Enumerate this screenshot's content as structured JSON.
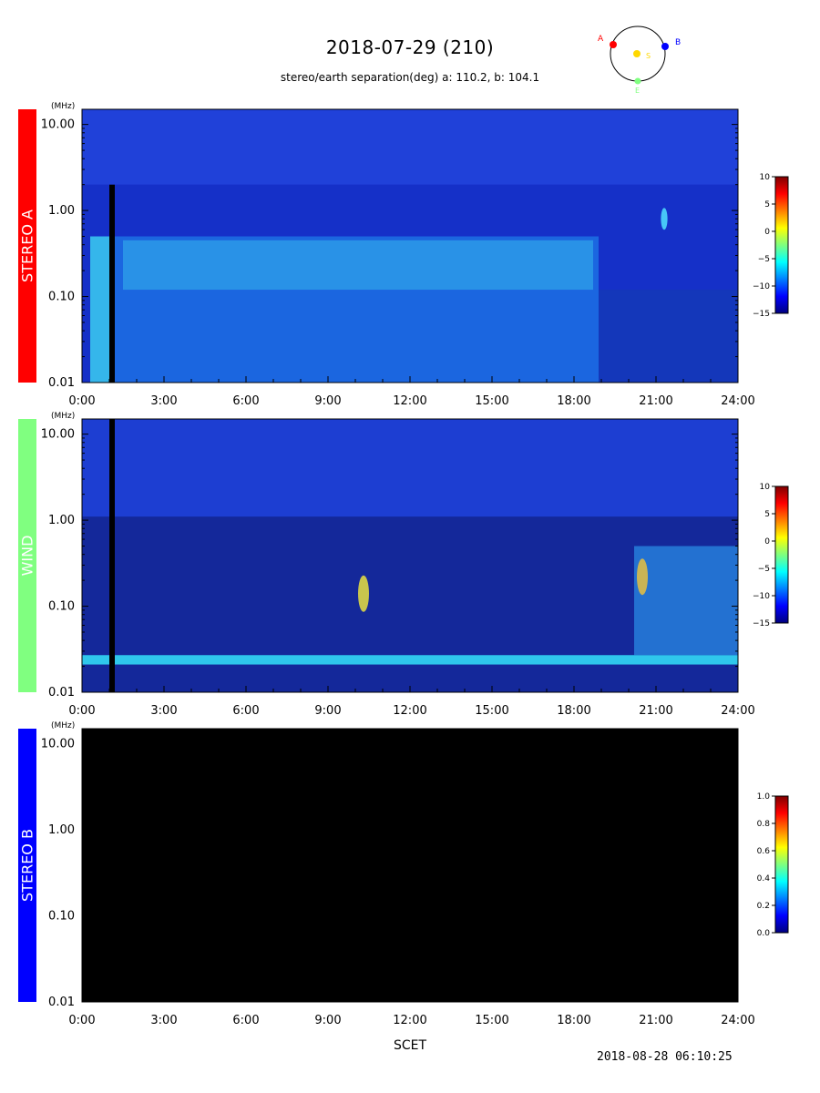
{
  "title": "2018-07-29 (210)",
  "subtitle": "stereo/earth separation(deg) a: 110.2, b: 104.1",
  "orbit": {
    "label_a": "A",
    "label_b": "B",
    "label_s": "S",
    "label_e": "E"
  },
  "xlabel": "SCET",
  "timestamp": "2018-08-28 06:10:25",
  "chart_data": [
    {
      "type": "heatmap",
      "panel": "STEREO A",
      "side_label": "STEREO A",
      "side_color": "#ff0000",
      "side_text_color": "#ffffff",
      "ylabel": "(MHz)",
      "yscale": "log",
      "ylim": [
        0.01,
        15
      ],
      "yticks": [
        {
          "value": 0.01,
          "label": "0.01"
        },
        {
          "value": 0.1,
          "label": "0.10"
        },
        {
          "value": 1,
          "label": "1.00"
        },
        {
          "value": 10,
          "label": "10.00"
        }
      ],
      "xlim": [
        0,
        24
      ],
      "xticks": [
        {
          "value": 0,
          "label": "0:00"
        },
        {
          "value": 3,
          "label": "3:00"
        },
        {
          "value": 6,
          "label": "6:00"
        },
        {
          "value": 9,
          "label": "9:00"
        },
        {
          "value": 12,
          "label": "12:00"
        },
        {
          "value": 15,
          "label": "15:00"
        },
        {
          "value": 18,
          "label": "18:00"
        },
        {
          "value": 21,
          "label": "21:00"
        },
        {
          "value": 24,
          "label": "24:00"
        }
      ],
      "colorbar": {
        "ticks": [
          {
            "value": 10,
            "label": "10"
          },
          {
            "value": 5,
            "label": "5"
          },
          {
            "value": 0,
            "label": "0"
          },
          {
            "value": -5,
            "label": "−5"
          },
          {
            "value": -10,
            "label": "−10"
          },
          {
            "value": -15,
            "label": "−15"
          }
        ],
        "range": [
          -15,
          10
        ]
      },
      "features": [
        {
          "kind": "background",
          "color": "#1530c8"
        },
        {
          "kind": "band",
          "t0": 0.3,
          "t1": 18.9,
          "f0": 0.01,
          "f1": 0.5,
          "color": "#1e78e8",
          "opacity": 0.75
        },
        {
          "kind": "band",
          "t0": 1.5,
          "t1": 18.7,
          "f0": 0.12,
          "f1": 0.45,
          "color": "#3cc8f0",
          "opacity": 0.45
        },
        {
          "kind": "band",
          "t0": 0.3,
          "t1": 1.0,
          "f0": 0.01,
          "f1": 0.5,
          "color": "#40d8f0",
          "opacity": 0.7
        },
        {
          "kind": "band",
          "t0": 1.0,
          "t1": 1.2,
          "f0": 0.01,
          "f1": 2.0,
          "color": "#000000",
          "opacity": 1
        },
        {
          "kind": "band",
          "t0": 18.9,
          "t1": 24,
          "f0": 0.01,
          "f1": 0.12,
          "color": "#1438b8",
          "opacity": 0.9
        },
        {
          "kind": "band",
          "t0": 0,
          "t1": 24,
          "f0": 2.0,
          "f1": 15,
          "color": "#2a50e8",
          "opacity": 0.55
        },
        {
          "kind": "spot",
          "t": 21.3,
          "f": 0.8,
          "color": "#50e0ff",
          "size": 6
        }
      ]
    },
    {
      "type": "heatmap",
      "panel": "WIND",
      "side_label": "WIND",
      "side_color": "#80ff80",
      "side_text_color": "#ffffff",
      "ylabel": "(MHz)",
      "yscale": "log",
      "ylim": [
        0.01,
        15
      ],
      "yticks": [
        {
          "value": 0.01,
          "label": "0.01"
        },
        {
          "value": 0.1,
          "label": "0.10"
        },
        {
          "value": 1,
          "label": "1.00"
        },
        {
          "value": 10,
          "label": "10.00"
        }
      ],
      "xlim": [
        0,
        24
      ],
      "xticks": [
        {
          "value": 0,
          "label": "0:00"
        },
        {
          "value": 3,
          "label": "3:00"
        },
        {
          "value": 6,
          "label": "6:00"
        },
        {
          "value": 9,
          "label": "9:00"
        },
        {
          "value": 12,
          "label": "12:00"
        },
        {
          "value": 15,
          "label": "15:00"
        },
        {
          "value": 18,
          "label": "18:00"
        },
        {
          "value": 21,
          "label": "21:00"
        },
        {
          "value": 24,
          "label": "24:00"
        }
      ],
      "colorbar": {
        "ticks": [
          {
            "value": 10,
            "label": "10"
          },
          {
            "value": 5,
            "label": "5"
          },
          {
            "value": 0,
            "label": "0"
          },
          {
            "value": -5,
            "label": "−5"
          },
          {
            "value": -10,
            "label": "−10"
          },
          {
            "value": -15,
            "label": "−15"
          }
        ],
        "range": [
          -15,
          10
        ]
      },
      "features": [
        {
          "kind": "background",
          "color": "#14289a"
        },
        {
          "kind": "band",
          "t0": 0,
          "t1": 24,
          "f0": 1.1,
          "f1": 15,
          "color": "#1e40d8",
          "opacity": 0.9
        },
        {
          "kind": "band",
          "t0": 0,
          "t1": 24,
          "f0": 0.021,
          "f1": 0.027,
          "color": "#30d0f0",
          "opacity": 0.95
        },
        {
          "kind": "band",
          "t0": 20.2,
          "t1": 24,
          "f0": 0.027,
          "f1": 0.5,
          "color": "#2a90e8",
          "opacity": 0.7
        },
        {
          "kind": "band",
          "t0": 1.0,
          "t1": 1.2,
          "f0": 0.01,
          "f1": 15,
          "color": "#000000",
          "opacity": 1
        },
        {
          "kind": "spot",
          "t": 10.3,
          "f": 0.14,
          "color": "#e8e040",
          "size": 10
        },
        {
          "kind": "spot",
          "t": 20.5,
          "f": 0.22,
          "color": "#e8c040",
          "size": 10
        }
      ]
    },
    {
      "type": "heatmap",
      "panel": "STEREO B",
      "side_label": "STEREO B",
      "side_color": "#0000ff",
      "side_text_color": "#ffffff",
      "ylabel": "(MHz)",
      "yscale": "log",
      "ylim": [
        0.01,
        15
      ],
      "yticks": [
        {
          "value": 0.01,
          "label": "0.01"
        },
        {
          "value": 0.1,
          "label": "0.10"
        },
        {
          "value": 1,
          "label": "1.00"
        },
        {
          "value": 10,
          "label": "10.00"
        }
      ],
      "xlim": [
        0,
        24
      ],
      "xticks": [
        {
          "value": 0,
          "label": "0:00"
        },
        {
          "value": 3,
          "label": "3:00"
        },
        {
          "value": 6,
          "label": "6:00"
        },
        {
          "value": 9,
          "label": "9:00"
        },
        {
          "value": 12,
          "label": "12:00"
        },
        {
          "value": 15,
          "label": "15:00"
        },
        {
          "value": 18,
          "label": "18:00"
        },
        {
          "value": 21,
          "label": "21:00"
        },
        {
          "value": 24,
          "label": "24:00"
        }
      ],
      "colorbar": {
        "ticks": [
          {
            "value": 1.0,
            "label": "1.0"
          },
          {
            "value": 0.8,
            "label": "0.8"
          },
          {
            "value": 0.6,
            "label": "0.6"
          },
          {
            "value": 0.4,
            "label": "0.4"
          },
          {
            "value": 0.2,
            "label": "0.2"
          },
          {
            "value": 0.0,
            "label": "0.0"
          }
        ],
        "range": [
          0,
          1
        ]
      },
      "features": [
        {
          "kind": "background",
          "color": "#000000"
        }
      ]
    }
  ]
}
